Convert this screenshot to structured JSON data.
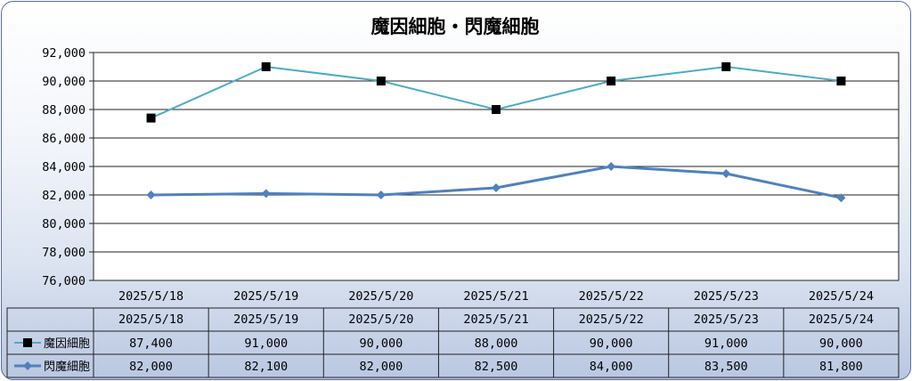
{
  "chart_data": {
    "type": "line",
    "title": "魔因細胞・閃魔細胞",
    "categories": [
      "2025/5/18",
      "2025/5/19",
      "2025/5/20",
      "2025/5/21",
      "2025/5/22",
      "2025/5/23",
      "2025/5/24"
    ],
    "series": [
      {
        "name": "魔因細胞",
        "values": [
          87400,
          91000,
          90000,
          88000,
          90000,
          91000,
          90000
        ],
        "color": "#4bacc6",
        "marker": "square"
      },
      {
        "name": "閃魔細胞",
        "values": [
          82000,
          82100,
          82000,
          82500,
          84000,
          83500,
          81800
        ],
        "color": "#4f81bd",
        "marker": "diamond"
      }
    ],
    "ylim": [
      76000,
      92000
    ],
    "yticks": [
      "76,000",
      "78,000",
      "80,000",
      "82,000",
      "84,000",
      "86,000",
      "88,000",
      "90,000",
      "92,000"
    ],
    "ytick_values": [
      76000,
      78000,
      80000,
      82000,
      84000,
      86000,
      88000,
      90000,
      92000
    ],
    "data_table": {
      "rows": [
        [
          "87,400",
          "91,000",
          "90,000",
          "88,000",
          "90,000",
          "91,000",
          "90,000"
        ],
        [
          "82,000",
          "82,100",
          "82,000",
          "82,500",
          "84,000",
          "83,500",
          "81,800"
        ]
      ]
    },
    "grid": true,
    "legend": "data-table"
  }
}
